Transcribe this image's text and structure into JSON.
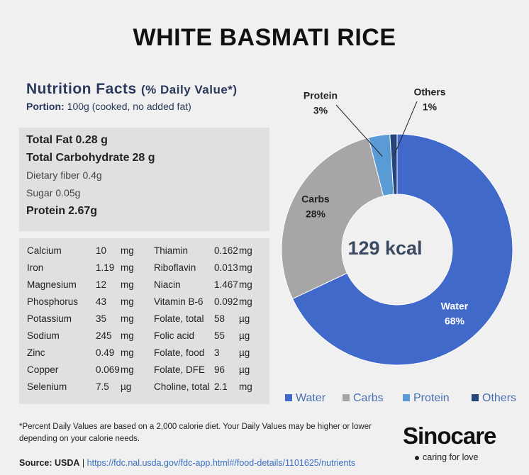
{
  "header": {
    "title": "WHITE BASMATI RICE"
  },
  "facts": {
    "heading": "Nutrition Facts",
    "heading_note": "(% Daily Value*)",
    "portion_label": "Portion:",
    "portion": "100g (cooked, no added fat)",
    "macros": [
      {
        "name": "Total Fat",
        "amount": "0.28 g",
        "bold": true
      },
      {
        "name": "Total Carbohydrate",
        "amount": "28 g",
        "bold": true
      },
      {
        "name": "Dietary fiber",
        "amount": "0.4g",
        "bold": false
      },
      {
        "name": "Sugar",
        "amount": "0.05g",
        "bold": false
      },
      {
        "name": "Protein",
        "amount": "2.67g",
        "bold": true
      }
    ],
    "table": {
      "rows": [
        [
          "Calcium",
          "10",
          "mg",
          "Thiamin",
          "0.162",
          "mg"
        ],
        [
          "Iron",
          "1.19",
          "mg",
          "Riboflavin",
          "0.013",
          "mg"
        ],
        [
          "Magnesium",
          "12",
          "mg",
          "Niacin",
          "1.467",
          "mg"
        ],
        [
          "Phosphorus",
          "43",
          "mg",
          "Vitamin B-6",
          "0.092",
          "mg"
        ],
        [
          "Potassium",
          "35",
          "mg",
          "Folate, total",
          "58",
          "µg"
        ],
        [
          "Sodium",
          "245",
          "mg",
          "Folic acid",
          "55",
          "µg"
        ],
        [
          "Zinc",
          "0.49",
          "mg",
          "Folate, food",
          "3",
          "µg"
        ],
        [
          "Copper",
          "0.069",
          "mg",
          "Folate, DFE",
          "96",
          "µg"
        ],
        [
          "Selenium",
          "7.5",
          "µg",
          "Choline, total",
          "2.1",
          "mg"
        ]
      ]
    }
  },
  "chart_data": {
    "type": "donut",
    "center_label": "129 kcal",
    "categories": [
      "Water",
      "Carbs",
      "Protein",
      "Others"
    ],
    "values": [
      68,
      28,
      3,
      1
    ],
    "value_labels": [
      "68%",
      "28%",
      "3%",
      "1%"
    ],
    "colors": [
      "#4069c9",
      "#a6a6a6",
      "#5b9bd5",
      "#26457a"
    ],
    "legend": "bottom"
  },
  "footer": {
    "note": "*Percent Daily Values are based on a 2,000 calorie diet. Your Daily Values may be higher or lower depending on your calorie needs.",
    "source_label": "Source: USDA",
    "separator": "|",
    "url": "https://fdc.nal.usda.gov/fdc-app.html#/food-details/1101625/nutrients",
    "brand": "Sinocare",
    "tagline": "caring for love"
  }
}
